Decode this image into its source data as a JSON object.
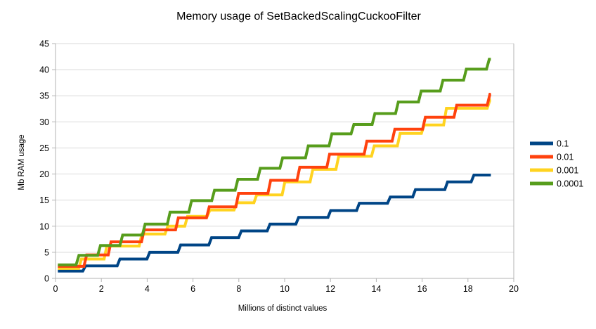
{
  "chart_data": {
    "type": "line",
    "title": "Memory usage of SetBackedScalingCuckooFilter",
    "xlabel": "Millions of distinct values",
    "ylabel": "Mb RAM usage",
    "xlim": [
      0,
      20
    ],
    "ylim": [
      0,
      45
    ],
    "x_ticks": [
      0,
      2,
      4,
      6,
      8,
      10,
      12,
      14,
      16,
      18,
      20
    ],
    "y_ticks": [
      0,
      5,
      10,
      15,
      20,
      25,
      30,
      35,
      40,
      45
    ],
    "grid": "horizontal",
    "legend_position": "right",
    "line_style": "step-staircase",
    "x_start": 0.1,
    "x_end": 19.0,
    "series": [
      {
        "name": "0.1",
        "color": "#004586",
        "start_value": 1.4,
        "steps": [
          [
            1.25,
            2.4
          ],
          [
            2.75,
            3.7
          ],
          [
            4.05,
            5.0
          ],
          [
            5.4,
            6.4
          ],
          [
            6.75,
            7.8
          ],
          [
            8.05,
            9.1
          ],
          [
            9.3,
            10.4
          ],
          [
            10.55,
            11.7
          ],
          [
            11.95,
            13.0
          ],
          [
            13.2,
            14.4
          ],
          [
            14.55,
            15.6
          ],
          [
            15.65,
            17.0
          ],
          [
            17.05,
            18.5
          ],
          [
            18.2,
            19.8
          ]
        ]
      },
      {
        "name": "0.01",
        "color": "#FF420E",
        "start_value": 2.3,
        "steps": [
          [
            1.3,
            4.5
          ],
          [
            2.36,
            7.0
          ],
          [
            3.81,
            9.3
          ],
          [
            5.3,
            11.6
          ],
          [
            6.65,
            13.7
          ],
          [
            7.93,
            16.3
          ],
          [
            9.33,
            18.8
          ],
          [
            10.6,
            21.3
          ],
          [
            11.9,
            23.8
          ],
          [
            13.53,
            26.3
          ],
          [
            14.75,
            28.6
          ],
          [
            16.08,
            30.9
          ],
          [
            17.45,
            33.2
          ],
          [
            18.9,
            35.3
          ]
        ]
      },
      {
        "name": "0.001",
        "color": "#FFD320",
        "start_value": 1.9,
        "steps": [
          [
            1.07,
            3.7
          ],
          [
            2.18,
            6.2
          ],
          [
            3.71,
            8.5
          ],
          [
            4.84,
            10.0
          ],
          [
            5.7,
            11.9
          ],
          [
            6.68,
            13.1
          ],
          [
            7.85,
            14.5
          ],
          [
            8.72,
            16.0
          ],
          [
            9.95,
            18.5
          ],
          [
            11.17,
            20.9
          ],
          [
            12.3,
            23.4
          ],
          [
            13.85,
            25.4
          ],
          [
            14.98,
            27.8
          ],
          [
            16.03,
            29.4
          ],
          [
            17.0,
            32.6
          ],
          [
            18.9,
            34.2
          ]
        ]
      },
      {
        "name": "0.0001",
        "color": "#579D1C",
        "start_value": 2.6,
        "steps": [
          [
            0.96,
            4.4
          ],
          [
            1.9,
            6.3
          ],
          [
            2.87,
            8.3
          ],
          [
            3.85,
            10.4
          ],
          [
            4.94,
            12.7
          ],
          [
            5.88,
            14.9
          ],
          [
            6.88,
            16.9
          ],
          [
            7.9,
            19.0
          ],
          [
            8.88,
            21.1
          ],
          [
            9.85,
            23.1
          ],
          [
            10.97,
            25.4
          ],
          [
            12.0,
            27.7
          ],
          [
            12.96,
            29.5
          ],
          [
            13.88,
            31.6
          ],
          [
            14.9,
            33.8
          ],
          [
            15.9,
            35.9
          ],
          [
            16.85,
            38.0
          ],
          [
            17.87,
            40.1
          ],
          [
            18.87,
            42.0
          ]
        ]
      }
    ]
  },
  "colors": {
    "background": "#ffffff",
    "gridline": "#d9d9d9",
    "axis": "#b3b3b3",
    "text": "#000000"
  }
}
